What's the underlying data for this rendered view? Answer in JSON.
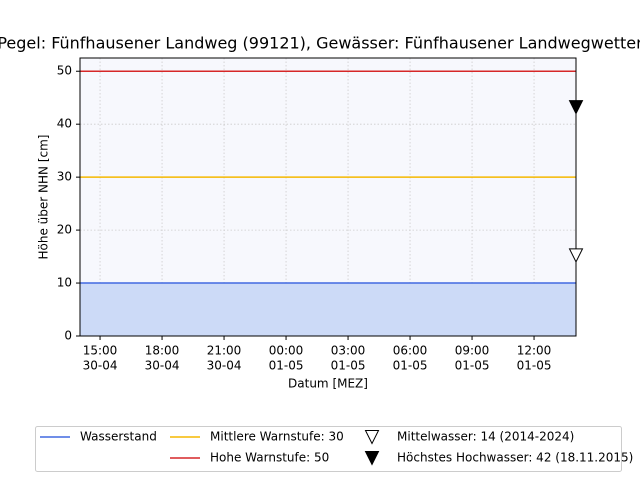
{
  "chart_data": {
    "type": "line",
    "title": "Pegel:  Fünfhausener Landweg (99121), Gewässer:  Fünfhausener Landwegwetter",
    "xlabel": "Datum [MEZ]",
    "ylabel": "Höhe über NHN [cm]",
    "xlim": [
      14.03,
      38.03
    ],
    "ylim": [
      0,
      52.5
    ],
    "xticks": [
      {
        "value": 15,
        "label": [
          "15:00",
          "30-04"
        ]
      },
      {
        "value": 18,
        "label": [
          "18:00",
          "30-04"
        ]
      },
      {
        "value": 21,
        "label": [
          "21:00",
          "30-04"
        ]
      },
      {
        "value": 24,
        "label": [
          "00:00",
          "01-05"
        ]
      },
      {
        "value": 27,
        "label": [
          "03:00",
          "01-05"
        ]
      },
      {
        "value": 30,
        "label": [
          "06:00",
          "01-05"
        ]
      },
      {
        "value": 33,
        "label": [
          "09:00",
          "01-05"
        ]
      },
      {
        "value": 36,
        "label": [
          "12:00",
          "01-05"
        ]
      }
    ],
    "yticks": [
      0,
      10,
      20,
      30,
      40,
      50
    ],
    "grid": true,
    "series": [
      {
        "name": "Wasserstand",
        "color": "#4169e1",
        "fill": "#ccdaf7",
        "x": [
          14.03,
          38.03
        ],
        "values": [
          10,
          10
        ]
      }
    ],
    "hlines": [
      {
        "name": "Mittlere Warnstufe: 30",
        "value": 30,
        "color": "#f5b800"
      },
      {
        "name": "Hohe Warnstufe: 50",
        "value": 50,
        "color": "#d62728"
      }
    ],
    "markers": [
      {
        "name": "Mittelwasser: 14 (2014-2024)",
        "x": 38.03,
        "value": 14,
        "filled": false
      },
      {
        "name": "Höchstes Hochwasser: 42 (18.11.2015)",
        "x": 38.03,
        "value": 42,
        "filled": true
      }
    ]
  }
}
